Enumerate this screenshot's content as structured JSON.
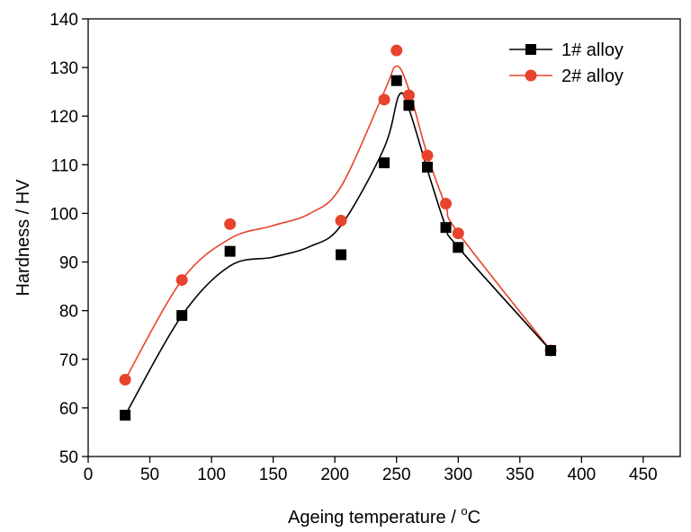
{
  "chart_data": {
    "type": "scatter",
    "xlabel": "Ageing temperature / ",
    "xlabel_unit_sup": "o",
    "xlabel_unit": "C",
    "ylabel": "Hardness / HV",
    "xlim": [
      0,
      480
    ],
    "ylim": [
      50,
      140
    ],
    "x_ticks": [
      0,
      50,
      100,
      150,
      200,
      250,
      300,
      350,
      400,
      450
    ],
    "y_ticks": [
      50,
      60,
      70,
      80,
      90,
      100,
      110,
      120,
      130,
      140
    ],
    "legend_position": "top-right",
    "grid": false,
    "series": [
      {
        "name": "1# alloy",
        "marker": "square",
        "color": "#000000",
        "line_color": "#000000",
        "points": [
          {
            "x": 30,
            "y": 58.5
          },
          {
            "x": 76,
            "y": 79
          },
          {
            "x": 115,
            "y": 92.2
          },
          {
            "x": 205,
            "y": 91.5
          },
          {
            "x": 240,
            "y": 110.4
          },
          {
            "x": 250,
            "y": 127.3
          },
          {
            "x": 260,
            "y": 122.2
          },
          {
            "x": 275,
            "y": 109.5
          },
          {
            "x": 290,
            "y": 97.1
          },
          {
            "x": 300,
            "y": 93
          },
          {
            "x": 375,
            "y": 71.8
          }
        ],
        "curve": [
          {
            "x": 30,
            "y": 58.5
          },
          {
            "x": 76,
            "y": 79
          },
          {
            "x": 115,
            "y": 89.2
          },
          {
            "x": 150,
            "y": 91
          },
          {
            "x": 180,
            "y": 93.2
          },
          {
            "x": 205,
            "y": 97.5
          },
          {
            "x": 240,
            "y": 113.5
          },
          {
            "x": 252,
            "y": 124.3
          },
          {
            "x": 260,
            "y": 121.5
          },
          {
            "x": 275,
            "y": 109
          },
          {
            "x": 290,
            "y": 97.3
          },
          {
            "x": 300,
            "y": 93
          },
          {
            "x": 375,
            "y": 71.8
          }
        ]
      },
      {
        "name": "2# alloy",
        "marker": "circle",
        "color": "#e8432c",
        "line_color": "#e8432c",
        "points": [
          {
            "x": 30,
            "y": 65.8
          },
          {
            "x": 76,
            "y": 86.3
          },
          {
            "x": 115,
            "y": 97.8
          },
          {
            "x": 205,
            "y": 98.5
          },
          {
            "x": 240,
            "y": 123.4
          },
          {
            "x": 250,
            "y": 133.5
          },
          {
            "x": 260,
            "y": 124.3
          },
          {
            "x": 275,
            "y": 111.9
          },
          {
            "x": 290,
            "y": 102
          },
          {
            "x": 300,
            "y": 95.9
          },
          {
            "x": 375,
            "y": 71.8
          }
        ],
        "curve": [
          {
            "x": 30,
            "y": 65.8
          },
          {
            "x": 76,
            "y": 86.3
          },
          {
            "x": 115,
            "y": 94.8
          },
          {
            "x": 150,
            "y": 97.5
          },
          {
            "x": 180,
            "y": 100
          },
          {
            "x": 205,
            "y": 105.5
          },
          {
            "x": 240,
            "y": 125
          },
          {
            "x": 250,
            "y": 130.3
          },
          {
            "x": 260,
            "y": 125.5
          },
          {
            "x": 275,
            "y": 112
          },
          {
            "x": 290,
            "y": 101.5
          },
          {
            "x": 300,
            "y": 96
          },
          {
            "x": 375,
            "y": 71.8
          }
        ]
      }
    ]
  }
}
